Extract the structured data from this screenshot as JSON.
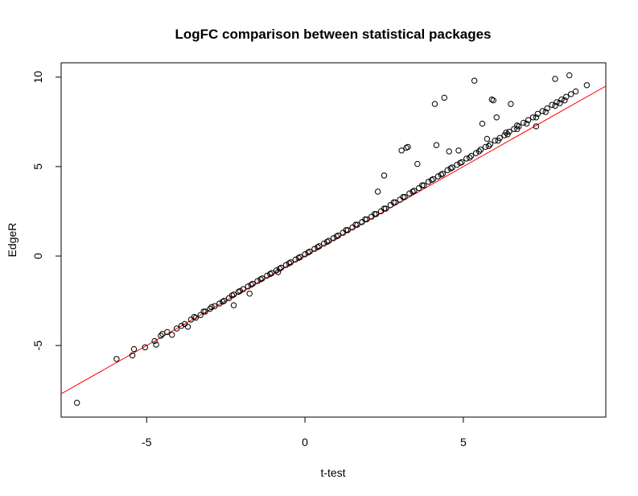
{
  "chart_data": {
    "type": "scatter",
    "title": "LogFC comparison between statistical packages",
    "xlabel": "t-test",
    "ylabel": "EdgeR",
    "xlim": [
      -7.7,
      9.5
    ],
    "ylim": [
      -9.0,
      10.8
    ],
    "x_ticks": [
      -5,
      0,
      5
    ],
    "y_ticks": [
      -5,
      0,
      5,
      10
    ],
    "x_tick_labels": [
      "-5",
      "0",
      "5"
    ],
    "y_tick_labels": [
      "-5",
      "0",
      "5",
      "10"
    ],
    "grid": false,
    "legend": "none",
    "colors": {
      "points": "#000000",
      "line": "#ff0000",
      "frame": "#000000"
    },
    "reference_line": {
      "intercept": 0,
      "slope": 1,
      "color": "#ff0000"
    },
    "points": {
      "x": [
        -7.2,
        -5.95,
        -5.45,
        -5.4,
        -5.05,
        -4.75,
        -4.7,
        -4.55,
        -4.5,
        -4.35,
        -4.2,
        -4.05,
        -3.9,
        -3.8,
        -3.7,
        -3.6,
        -3.45,
        -3.3,
        -3.15,
        -3.0,
        -2.85,
        -2.7,
        -2.55,
        -2.4,
        -2.25,
        -2.1,
        -1.95,
        -1.8,
        -1.65,
        -1.5,
        -1.35,
        -1.2,
        -1.05,
        -0.9,
        -0.75,
        -0.6,
        -0.45,
        -0.3,
        -0.15,
        0.0,
        0.15,
        0.3,
        0.45,
        0.6,
        0.75,
        0.9,
        1.05,
        1.2,
        1.35,
        1.5,
        1.65,
        1.8,
        1.95,
        2.1,
        2.25,
        2.4,
        2.55,
        2.7,
        2.85,
        3.0,
        3.15,
        3.3,
        3.45,
        3.6,
        3.75,
        3.9,
        4.05,
        4.2,
        4.35,
        4.5,
        4.65,
        4.8,
        4.95,
        5.1,
        5.25,
        5.4,
        5.55,
        5.7,
        5.85,
        6.0,
        6.15,
        6.3,
        6.45,
        6.6,
        6.75,
        6.9,
        7.05,
        7.2,
        7.35,
        7.5,
        7.65,
        7.8,
        7.95,
        8.1,
        8.25,
        8.4,
        8.55,
        -3.5,
        -3.2,
        -2.95,
        -2.6,
        -2.3,
        -2.05,
        -1.7,
        -1.4,
        -1.1,
        -0.8,
        -0.5,
        -0.2,
        0.1,
        0.4,
        0.7,
        1.0,
        1.3,
        1.6,
        1.9,
        2.2,
        2.5,
        2.8,
        3.1,
        3.4,
        3.7,
        4.0,
        4.3,
        4.6,
        4.9,
        5.2,
        5.5,
        5.8,
        6.1,
        6.4,
        6.7,
        7.0,
        7.3,
        7.6,
        7.9,
        8.2,
        2.3,
        2.5,
        3.05,
        3.2,
        3.25,
        3.55,
        4.1,
        4.15,
        4.4,
        4.55,
        4.85,
        5.35,
        5.6,
        5.75,
        5.9,
        5.95,
        6.05,
        6.35,
        6.5,
        6.7,
        7.3,
        7.9,
        8.05,
        8.35,
        8.9,
        -2.25,
        -1.75,
        -0.85
      ],
      "y": [
        -8.2,
        -5.75,
        -5.55,
        -5.2,
        -5.1,
        -4.75,
        -4.95,
        -4.45,
        -4.35,
        -4.25,
        -4.4,
        -4.05,
        -3.9,
        -3.8,
        -3.95,
        -3.55,
        -3.45,
        -3.3,
        -3.1,
        -2.95,
        -2.8,
        -2.65,
        -2.5,
        -2.35,
        -2.15,
        -2.0,
        -1.85,
        -1.7,
        -1.55,
        -1.4,
        -1.25,
        -1.1,
        -0.95,
        -0.8,
        -0.65,
        -0.5,
        -0.35,
        -0.2,
        -0.05,
        0.1,
        0.25,
        0.4,
        0.55,
        0.7,
        0.85,
        1.0,
        1.15,
        1.3,
        1.45,
        1.6,
        1.75,
        1.9,
        2.05,
        2.2,
        2.35,
        2.5,
        2.65,
        2.85,
        3.0,
        3.15,
        3.3,
        3.5,
        3.65,
        3.8,
        3.95,
        4.15,
        4.3,
        4.45,
        4.6,
        4.8,
        4.95,
        5.1,
        5.25,
        5.45,
        5.6,
        5.75,
        5.95,
        6.1,
        6.25,
        6.45,
        6.6,
        6.75,
        6.95,
        7.1,
        7.25,
        7.45,
        7.6,
        7.75,
        7.95,
        8.1,
        8.25,
        8.45,
        8.6,
        8.75,
        8.9,
        9.05,
        9.2,
        -3.4,
        -3.1,
        -2.85,
        -2.55,
        -2.2,
        -1.95,
        -1.6,
        -1.3,
        -1.0,
        -0.7,
        -0.4,
        -0.1,
        0.2,
        0.5,
        0.8,
        1.1,
        1.45,
        1.75,
        2.05,
        2.35,
        2.65,
        3.0,
        3.3,
        3.6,
        3.95,
        4.25,
        4.55,
        4.9,
        5.2,
        5.5,
        5.85,
        6.15,
        6.45,
        6.8,
        7.1,
        7.4,
        7.75,
        8.05,
        8.4,
        8.7,
        3.6,
        4.5,
        5.9,
        6.05,
        6.1,
        5.15,
        8.5,
        6.2,
        8.85,
        5.85,
        5.9,
        9.8,
        7.4,
        6.55,
        8.75,
        8.7,
        7.75,
        6.9,
        8.5,
        7.3,
        7.25,
        9.9,
        8.55,
        10.1,
        9.55,
        -2.75,
        -2.1,
        -0.9
      ]
    }
  }
}
